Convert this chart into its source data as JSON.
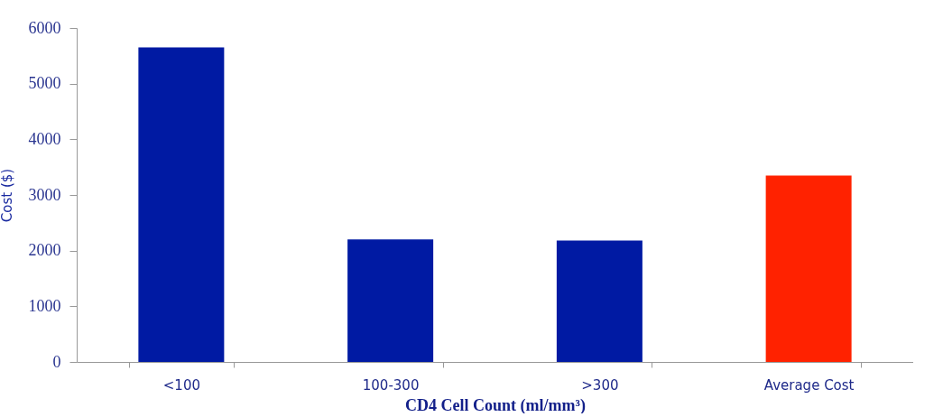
{
  "chart_data": {
    "type": "bar",
    "xlabel": "CD4 Cell Count (ml/mm³)",
    "ylabel": "Cost ($)",
    "categories": [
      "<100",
      "100-300",
      ">300",
      "Average Cost"
    ],
    "values": [
      5650,
      2200,
      2180,
      3350
    ],
    "colors": [
      "#001aa3",
      "#001aa3",
      "#001aa3",
      "#ff2200"
    ],
    "ylim": [
      0,
      6000
    ],
    "yticks": [
      0,
      1000,
      2000,
      3000,
      4000,
      5000,
      6000
    ],
    "grid": false
  }
}
